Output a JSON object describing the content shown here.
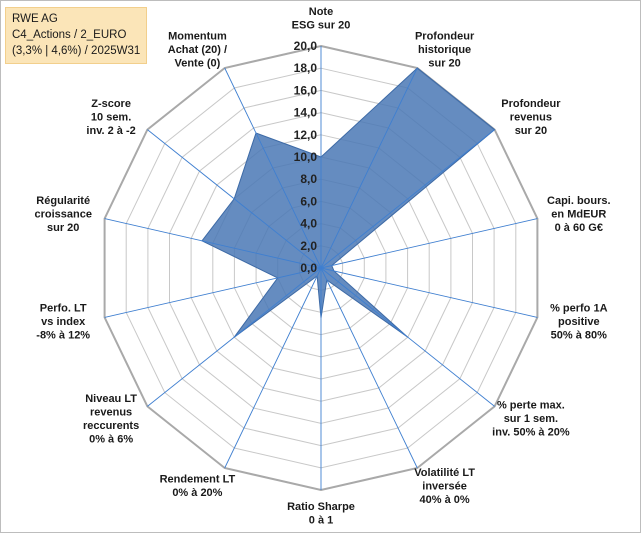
{
  "info": {
    "line1": "RWE AG",
    "line2": "C4_Actions / 2_EURO",
    "line3": "(3,3% | 4,6%) / 2025W31"
  },
  "colors": {
    "fill": "#4a78b5",
    "stroke": "#3d6aa6",
    "grid": "#c8c8c8",
    "spoke": "#3f7fd0",
    "info_bg": "#fbe5b8"
  },
  "chart_data": {
    "type": "radar",
    "rmin": 0,
    "rmax": 20,
    "grid_step": 2,
    "tick_labels": [
      "0,0",
      "2,0",
      "4,0",
      "6,0",
      "8,0",
      "10,0",
      "12,0",
      "14,0",
      "16,0",
      "18,0",
      "20,0"
    ],
    "axes": [
      [
        "Note",
        "ESG sur 20"
      ],
      [
        "Profondeur",
        "historique",
        "sur 20"
      ],
      [
        "Profondeur",
        "revenus",
        "sur 20"
      ],
      [
        "Capi. bours.",
        "en MdEUR",
        "0 à 60 G€"
      ],
      [
        "% perfo 1A",
        "positive",
        "50% à 80%"
      ],
      [
        "% perte max.",
        "sur 1 sem.",
        "inv. 50% à 20%"
      ],
      [
        "Volatilité LT",
        "inversée",
        "40% à 0%"
      ],
      [
        "Ratio Sharpe",
        "0 à 1"
      ],
      [
        "Rendement LT",
        "0% à 20%"
      ],
      [
        "Niveau LT",
        "revenus",
        "reccurents",
        "0% à 6%"
      ],
      [
        "Perfo. LT",
        "vs index",
        "-8% à 12%"
      ],
      [
        "Régularité",
        "croissance",
        "sur 20"
      ],
      [
        "Z-score",
        "10 sem.",
        "inv. 2 à -2"
      ],
      [
        "Momentum",
        "Achat (20) /",
        "Vente (0)"
      ]
    ],
    "series": [
      {
        "values": [
          10,
          20,
          20,
          1,
          1.2,
          10,
          1.2,
          4.5,
          0.8,
          10,
          4,
          11,
          10,
          13.5
        ]
      }
    ]
  }
}
